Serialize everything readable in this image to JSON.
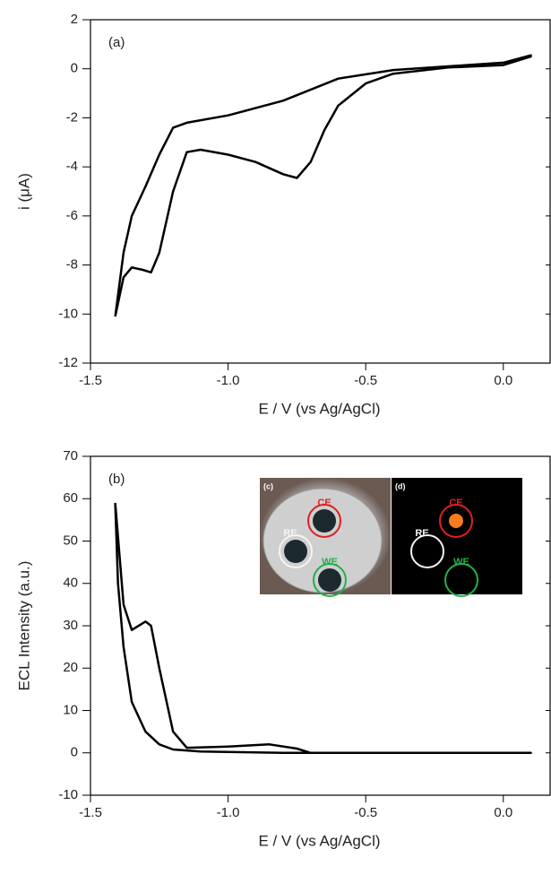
{
  "chart_data": [
    {
      "type": "line",
      "annotation": "(a)",
      "x_label": "E / V (vs Ag/AgCl)",
      "y_label": "i (μA)",
      "color": "#000000",
      "x": [
        -1.41,
        -1.38,
        -1.35,
        -1.3,
        -1.25,
        -1.2,
        -1.15,
        -1.0,
        -0.8,
        -0.6,
        -0.4,
        -0.2,
        0.0,
        0.1,
        0.1,
        0.0,
        -0.2,
        -0.4,
        -0.5,
        -0.6,
        -0.65,
        -0.7,
        -0.75,
        -0.8,
        -0.9,
        -1.0,
        -1.1,
        -1.15,
        -1.2,
        -1.25,
        -1.28,
        -1.31,
        -1.35,
        -1.38,
        -1.41
      ],
      "values": [
        -10.1,
        -7.5,
        -6.0,
        -4.8,
        -3.5,
        -2.4,
        -2.2,
        -1.9,
        -1.3,
        -0.4,
        -0.05,
        0.1,
        0.25,
        0.55,
        0.5,
        0.15,
        0.05,
        -0.2,
        -0.6,
        -1.5,
        -2.5,
        -3.8,
        -4.45,
        -4.3,
        -3.8,
        -3.5,
        -3.3,
        -3.4,
        -5.0,
        -7.5,
        -8.3,
        -8.2,
        -8.1,
        -8.5,
        -10.1
      ],
      "xlim": [
        -1.5,
        0.17
      ],
      "ylim": [
        -12,
        2
      ],
      "xticks": [
        -1.5,
        {
          "value": -1,
          "label": "-1.0"
        },
        -0.5,
        {
          "value": 0,
          "label": "0.0"
        }
      ],
      "yticks": [
        -12,
        -10,
        -8,
        -6,
        -4,
        -2,
        0,
        2
      ]
    },
    {
      "type": "line",
      "annotation": "(b)",
      "x_label": "E / V (vs Ag/AgCl)",
      "y_label": "ECL Intensity (a.u.)",
      "color": "#000000",
      "x": [
        -1.41,
        -1.4,
        -1.38,
        -1.35,
        -1.3,
        -1.25,
        -1.2,
        -1.1,
        -1.0,
        -0.8,
        0.1,
        0.1,
        -0.7,
        -0.75,
        -0.85,
        -1.0,
        -1.15,
        -1.2,
        -1.25,
        -1.28,
        -1.3,
        -1.35,
        -1.38,
        -1.41
      ],
      "values": [
        59,
        40,
        25,
        12,
        5,
        2,
        0.8,
        0.3,
        0.2,
        0,
        0,
        0,
        0,
        1,
        2,
        1.5,
        1.2,
        5,
        20,
        30,
        31,
        29,
        35,
        59
      ],
      "xlim": [
        -1.5,
        0.17
      ],
      "ylim": [
        -10,
        70
      ],
      "xticks": [
        -1.5,
        {
          "value": -1,
          "label": "-1.0"
        },
        -0.5,
        {
          "value": 0,
          "label": "0.0"
        }
      ],
      "yticks": [
        -10,
        0,
        10,
        20,
        30,
        40,
        50,
        60,
        70
      ],
      "inset": [
        {
          "label": "(c)",
          "electrodes": [
            "CE",
            "RE",
            "WE"
          ]
        },
        {
          "label": "(d)",
          "electrodes": [
            "CE",
            "RE",
            "WE"
          ]
        }
      ]
    }
  ]
}
